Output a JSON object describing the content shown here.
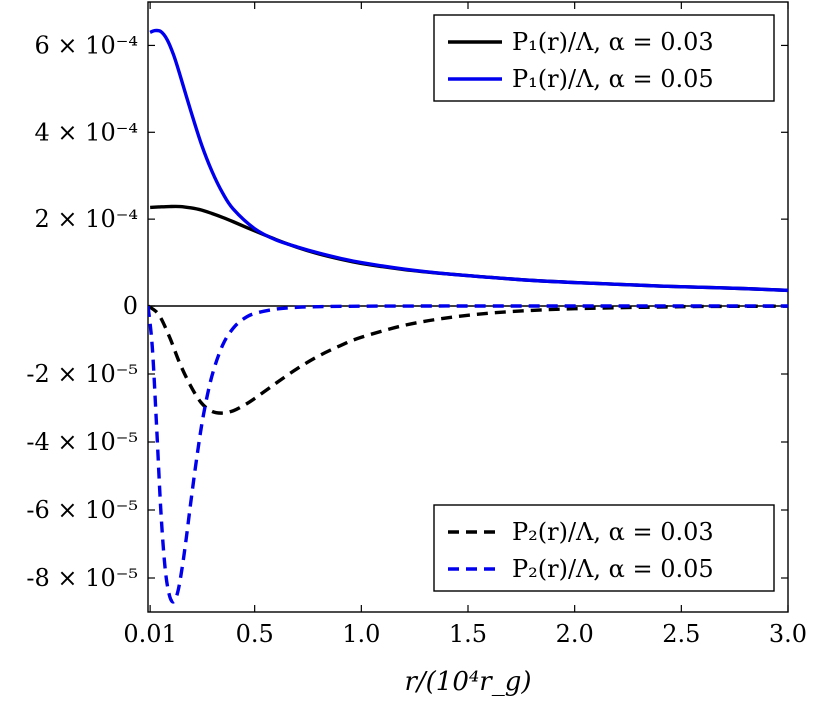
{
  "chart_data": [
    {
      "type": "line",
      "panel": "top",
      "ylim": [
        0,
        0.0007
      ],
      "xlim": [
        0.0,
        3.0
      ],
      "yticks": [
        {
          "value": 0.0002,
          "label": "2 × 10⁻⁴"
        },
        {
          "value": 0.0004,
          "label": "4 × 10⁻⁴"
        },
        {
          "value": 0.0006,
          "label": "6 × 10⁻⁴"
        }
      ],
      "legend_position": "top-right",
      "series": [
        {
          "name": "P₁(r)/Λ, α = 0.03",
          "color": "#000000",
          "dash": "solid",
          "x": [
            0.01,
            0.05,
            0.1,
            0.15,
            0.2,
            0.25,
            0.3,
            0.35,
            0.4,
            0.5,
            0.6,
            0.7,
            0.8,
            0.9,
            1.0,
            1.2,
            1.4,
            1.6,
            1.8,
            2.0,
            2.2,
            2.4,
            2.6,
            2.8,
            3.0
          ],
          "y": [
            0.000227,
            0.000228,
            0.000229,
            0.000229,
            0.000226,
            0.000221,
            0.000213,
            0.000204,
            0.000194,
            0.000173,
            0.000153,
            0.000135,
            0.00012,
            0.000108,
            9.8e-05,
            8.4e-05,
            7.4e-05,
            6.6e-05,
            5.9e-05,
            5.4e-05,
            5e-05,
            4.6e-05,
            4.3e-05,
            4e-05,
            3.6e-05
          ]
        },
        {
          "name": "P₁(r)/Λ, α = 0.05",
          "color": "#0000ee",
          "dash": "solid",
          "x": [
            0.01,
            0.03,
            0.06,
            0.09,
            0.12,
            0.15,
            0.2,
            0.25,
            0.3,
            0.35,
            0.4,
            0.5,
            0.6,
            0.7,
            0.8,
            0.9,
            1.0,
            1.2,
            1.4,
            1.6,
            1.8,
            2.0,
            2.2,
            2.4,
            2.6,
            2.8,
            3.0
          ],
          "y": [
            0.00063,
            0.000634,
            0.000632,
            0.000613,
            0.000578,
            0.000532,
            0.00045,
            0.000373,
            0.00031,
            0.00026,
            0.000223,
            0.000178,
            0.000152,
            0.000136,
            0.000122,
            0.00011,
            0.0001,
            8.5e-05,
            7.4e-05,
            6.6e-05,
            5.9e-05,
            5.4e-05,
            5e-05,
            4.6e-05,
            4.3e-05,
            4e-05,
            3.6e-05
          ]
        }
      ]
    },
    {
      "type": "line",
      "panel": "bottom",
      "ylim": [
        -9e-05,
        0
      ],
      "xlim": [
        0.0,
        3.0
      ],
      "xlabel": "r/(10⁴r_g)",
      "xticks": [
        {
          "value": 0.01,
          "label": "0.01"
        },
        {
          "value": 0.5,
          "label": "0.5"
        },
        {
          "value": 1.0,
          "label": "1.0"
        },
        {
          "value": 1.5,
          "label": "1.5"
        },
        {
          "value": 2.0,
          "label": "2.0"
        },
        {
          "value": 2.5,
          "label": "2.5"
        },
        {
          "value": 3.0,
          "label": "3.0"
        }
      ],
      "yticks": [
        {
          "value": 0,
          "label": "0"
        },
        {
          "value": -2e-05,
          "label": "-2 × 10⁻⁵"
        },
        {
          "value": -4e-05,
          "label": "-4 × 10⁻⁵"
        },
        {
          "value": -6e-05,
          "label": "-6 × 10⁻⁵"
        },
        {
          "value": -8e-05,
          "label": "-8 × 10⁻⁵"
        }
      ],
      "legend_position": "bottom-right",
      "series": [
        {
          "name": "P₂(r)/Λ, α = 0.03",
          "color": "#000000",
          "dash": "dashed",
          "x": [
            0.0,
            0.05,
            0.1,
            0.15,
            0.2,
            0.25,
            0.3,
            0.35,
            0.4,
            0.45,
            0.5,
            0.6,
            0.7,
            0.8,
            0.9,
            1.0,
            1.2,
            1.4,
            1.6,
            1.8,
            2.0,
            2.5,
            3.0
          ],
          "y": [
            0.0,
            -2.5e-06,
            -9e-06,
            -1.7e-05,
            -2.35e-05,
            -2.85e-05,
            -3.1e-05,
            -3.15e-05,
            -3.08e-05,
            -2.92e-05,
            -2.72e-05,
            -2.27e-05,
            -1.84e-05,
            -1.47e-05,
            -1.17e-05,
            -9.2e-06,
            -5.7e-06,
            -3.5e-06,
            -2.1e-06,
            -1.3e-06,
            -8e-07,
            -2e-07,
            -5e-08
          ]
        },
        {
          "name": "P₂(r)/Λ, α = 0.05",
          "color": "#0000ee",
          "dash": "dashed",
          "x": [
            0.0,
            0.02,
            0.04,
            0.06,
            0.08,
            0.1,
            0.12,
            0.14,
            0.16,
            0.18,
            0.2,
            0.23,
            0.26,
            0.3,
            0.35,
            0.4,
            0.45,
            0.5,
            0.6,
            0.7,
            0.8,
            1.0,
            1.3,
            1.6,
            2.0,
            3.0
          ],
          "y": [
            0.0,
            -1.2e-05,
            -3.5e-05,
            -6e-05,
            -7.7e-05,
            -8.5e-05,
            -8.7e-05,
            -8.4e-05,
            -7.7e-05,
            -6.8e-05,
            -5.8e-05,
            -4.4e-05,
            -3.2e-05,
            -2.05e-05,
            -1.15e-05,
            -6.5e-06,
            -3.7e-06,
            -2.2e-06,
            -9e-07,
            -4e-07,
            -2e-07,
            -5e-08,
            0.0,
            0.0,
            0.0,
            0.0
          ]
        }
      ]
    }
  ]
}
